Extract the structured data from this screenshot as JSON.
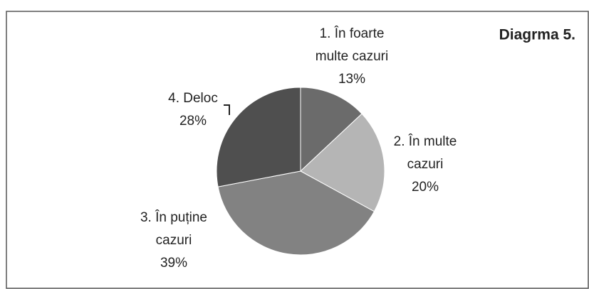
{
  "chart_data": {
    "type": "pie",
    "title": "Diagrma 5.",
    "categories": [
      "1. În foarte multe cazuri",
      "2. În multe cazuri",
      "3. În puține cazuri",
      "4. Deloc"
    ],
    "values": [
      13,
      20,
      39,
      28
    ],
    "value_labels": [
      "13%",
      "20%",
      "39%",
      "28%"
    ],
    "colors": [
      "#6b6b6b",
      "#b5b5b5",
      "#828282",
      "#4f4f4f"
    ]
  }
}
